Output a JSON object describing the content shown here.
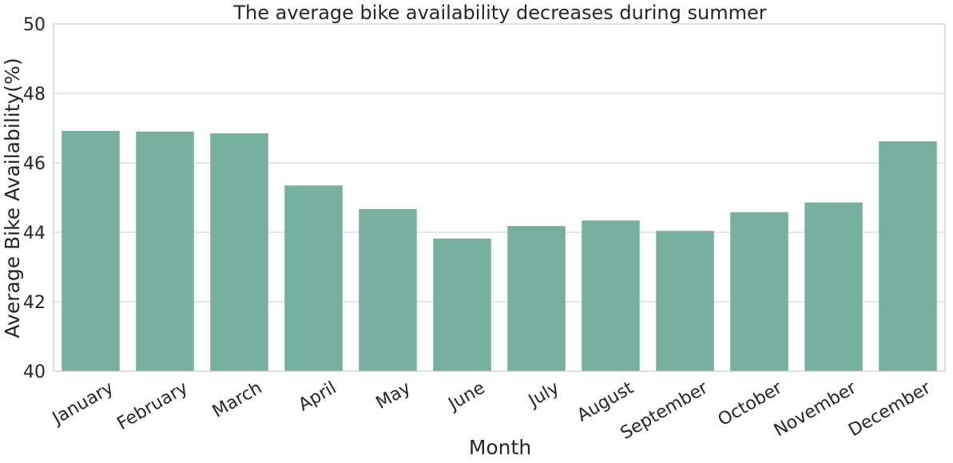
{
  "chart_data": {
    "type": "bar",
    "title": "The average bike availability decreases during summer",
    "xlabel": "Month",
    "ylabel": "Average Bike Availability(%)",
    "categories": [
      "January",
      "February",
      "March",
      "April",
      "May",
      "June",
      "July",
      "August",
      "September",
      "October",
      "November",
      "December"
    ],
    "values": [
      46.92,
      46.9,
      46.85,
      45.35,
      44.67,
      43.82,
      44.18,
      44.34,
      44.04,
      44.58,
      44.86,
      46.62
    ],
    "ylim": [
      40,
      50
    ],
    "yticks": [
      "40",
      "42",
      "44",
      "46",
      "48",
      "50"
    ],
    "grid": true,
    "bar_color": "#78b0a0",
    "grid_color": "#cccccc"
  }
}
